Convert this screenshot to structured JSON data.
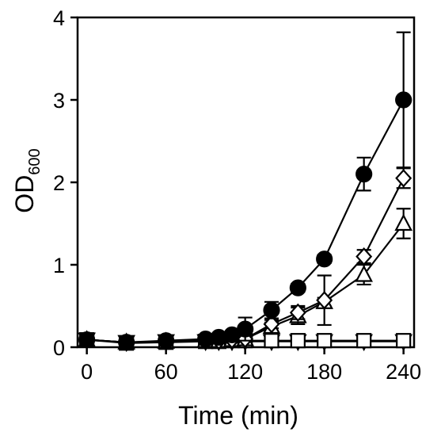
{
  "chart_data": {
    "type": "line",
    "xlabel": "Time (min)",
    "ylabel": {
      "main": "OD",
      "subscript": "600"
    },
    "xlim": [
      -7,
      248
    ],
    "ylim": [
      0,
      4
    ],
    "xticks": [
      0,
      60,
      120,
      180,
      240
    ],
    "xtick_labels": [
      "0",
      "60",
      "120",
      "180",
      "240"
    ],
    "yticks": [
      0,
      1,
      2,
      3,
      4
    ],
    "ytick_labels": [
      "0",
      "1",
      "2",
      "3",
      "4"
    ],
    "grid": false,
    "legend": "none",
    "series": [
      {
        "marker": "filled-circle",
        "color": "#000000",
        "x": [
          0,
          30,
          60,
          90,
          100,
          110,
          120,
          140,
          160,
          180,
          210,
          240
        ],
        "y": [
          0.09,
          0.06,
          0.08,
          0.1,
          0.12,
          0.15,
          0.22,
          0.45,
          0.72,
          1.07,
          2.1,
          3.0
        ],
        "err": [
          0,
          0,
          0,
          0,
          0,
          0,
          0.14,
          0.1,
          0.05,
          0.05,
          0.2,
          0.82
        ]
      },
      {
        "marker": "open-diamond",
        "color": "#000000",
        "x": [
          0,
          30,
          60,
          90,
          100,
          110,
          120,
          140,
          160,
          180,
          210,
          240
        ],
        "y": [
          0.09,
          0.06,
          0.07,
          0.08,
          0.08,
          0.09,
          0.1,
          0.28,
          0.42,
          0.57,
          1.1,
          2.05
        ],
        "err": [
          0,
          0,
          0,
          0,
          0,
          0,
          0,
          0.05,
          0.08,
          0.3,
          0.08,
          0.12
        ]
      },
      {
        "marker": "open-triangle-up",
        "color": "#000000",
        "x": [
          0,
          30,
          60,
          90,
          100,
          110,
          120,
          140,
          160,
          180,
          210,
          240
        ],
        "y": [
          0.09,
          0.06,
          0.07,
          0.08,
          0.08,
          0.09,
          0.1,
          0.25,
          0.38,
          0.55,
          0.88,
          1.5
        ],
        "err": [
          0,
          0,
          0,
          0,
          0,
          0,
          0,
          0.05,
          0.1,
          0.05,
          0.12,
          0.18
        ]
      },
      {
        "marker": "open-square",
        "color": "#000000",
        "x": [
          0,
          30,
          60,
          90,
          100,
          110,
          120,
          140,
          160,
          180,
          210,
          240
        ],
        "y": [
          0.09,
          0.05,
          0.06,
          0.07,
          0.07,
          0.08,
          0.08,
          0.08,
          0.08,
          0.08,
          0.08,
          0.08
        ],
        "err": [
          0,
          0,
          0,
          0,
          0,
          0,
          0,
          0,
          0,
          0,
          0,
          0
        ]
      },
      {
        "marker": "open-triangle-down",
        "color": "#000000",
        "x": [
          0,
          30,
          60,
          90,
          100,
          110,
          120,
          140,
          160,
          180,
          210,
          240
        ],
        "y": [
          0.09,
          0.06,
          0.07,
          0.07,
          0.07,
          0.07,
          0.07,
          0.07,
          0.07,
          0.07,
          0.07,
          0.07
        ],
        "err": [
          0,
          0,
          0,
          0,
          0,
          0,
          0,
          0,
          0,
          0,
          0,
          0
        ]
      }
    ]
  }
}
